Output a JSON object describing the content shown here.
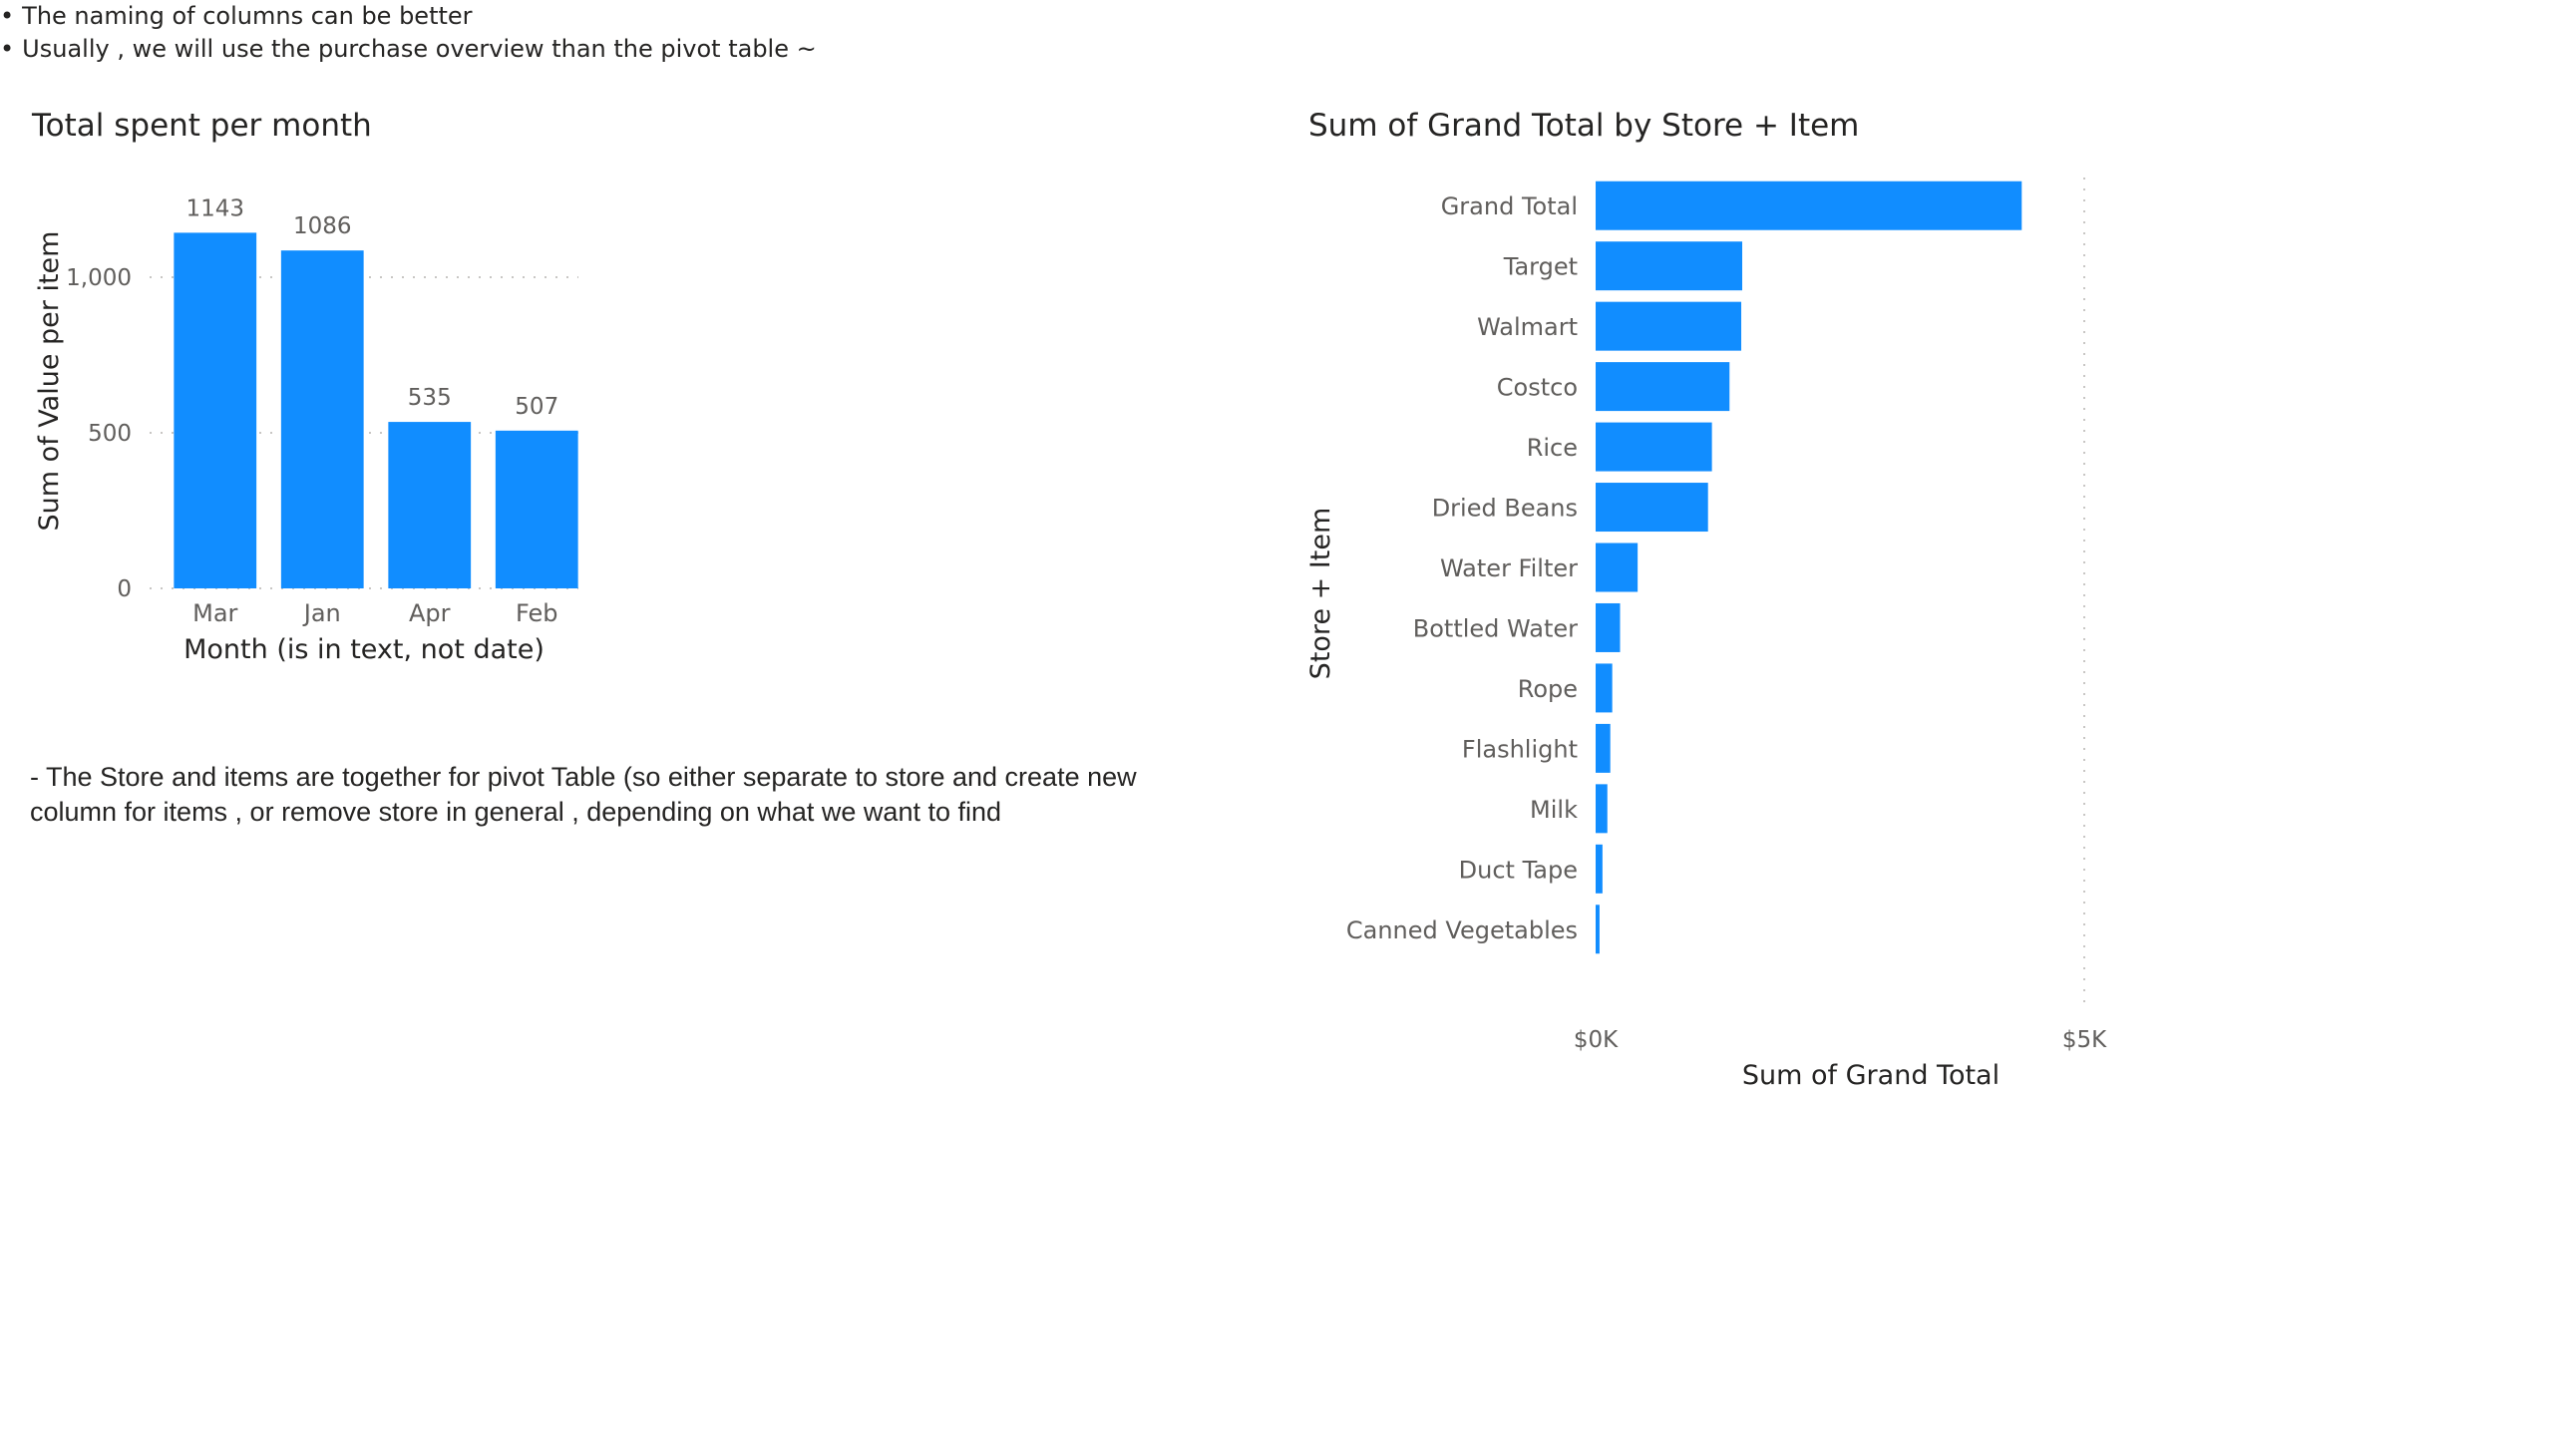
{
  "chart_data": [
    {
      "type": "bar",
      "title": "Total spent per month",
      "xlabel": "Month (is in text, not date)",
      "ylabel": "Sum of Value per item",
      "categories": [
        "Mar",
        "Jan",
        "Apr",
        "Feb"
      ],
      "values": [
        1143,
        1086,
        535,
        507
      ],
      "ylim": [
        0,
        1250
      ],
      "yticks": [
        0,
        500,
        1000
      ],
      "ytick_labels": [
        "0",
        "500",
        "1,000"
      ],
      "data_labels": true,
      "grid": true,
      "color": "#118DFF"
    },
    {
      "type": "bar",
      "orientation": "horizontal",
      "title": "Sum of Grand Total by Store + Item",
      "xlabel": "Sum of Grand Total",
      "ylabel": "Store + Item",
      "categories": [
        "Grand Total",
        "Target",
        "Walmart",
        "Costco",
        "Rice",
        "Dried Beans",
        "Water Filter",
        "Bottled Water",
        "Rope",
        "Flashlight",
        "Milk",
        "Duct Tape",
        "Canned Vegetables"
      ],
      "values": [
        4360,
        1500,
        1490,
        1370,
        1190,
        1150,
        430,
        250,
        170,
        150,
        120,
        70,
        40
      ],
      "xlim": [
        0,
        5000
      ],
      "xticks": [
        0,
        5000
      ],
      "xtick_labels": [
        "$0K",
        "$5K"
      ],
      "grid": true,
      "color": "#118DFF"
    }
  ],
  "notes": {
    "main": "- The Store and items are together for pivot Table (so either separate to store and  create new column for items , or remove store in general , depending on what we want to find",
    "bullets": [
      "The naming of columns can be better",
      "Usually , we will use the purchase overview than the pivot table ~"
    ]
  }
}
